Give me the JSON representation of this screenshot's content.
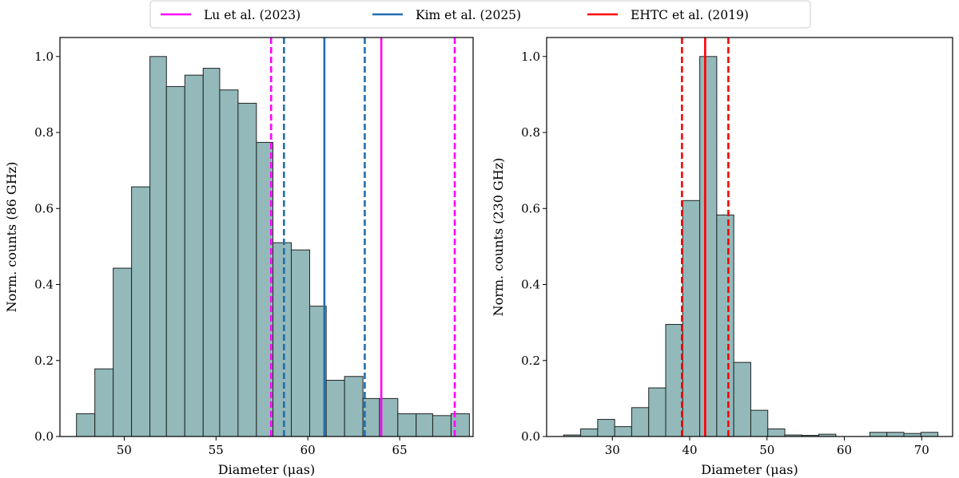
{
  "legend": {
    "items": [
      {
        "label": "Lu et al. (2023)",
        "color": "#ff00ff"
      },
      {
        "label": "Kim et al. (2025)",
        "color": "#1f6fb0"
      },
      {
        "label": "EHTC et al. (2019)",
        "color": "#ff0000"
      }
    ]
  },
  "chart_data": [
    {
      "type": "bar",
      "subtype": "histogram",
      "xlabel": "Diameter (μas)",
      "ylabel": "Norm. counts (86 GHz)",
      "xlim": [
        46.5,
        69.0
      ],
      "ylim": [
        0.0,
        1.05
      ],
      "xticks": [
        50,
        55,
        60,
        65
      ],
      "xtick_labels": [
        "50",
        "55",
        "60",
        "65"
      ],
      "yticks": [
        0.0,
        0.2,
        0.4,
        0.6,
        0.8,
        1.0
      ],
      "ytick_labels": [
        "0.0",
        "0.2",
        "0.4",
        "0.6",
        "0.8",
        "1.0"
      ],
      "bar_color": "#93b9ba",
      "bins": [
        {
          "x0": 47.4,
          "x1": 48.4,
          "value": 0.06
        },
        {
          "x0": 48.4,
          "x1": 49.4,
          "value": 0.178
        },
        {
          "x0": 49.4,
          "x1": 50.4,
          "value": 0.443
        },
        {
          "x0": 50.4,
          "x1": 51.4,
          "value": 0.657
        },
        {
          "x0": 51.4,
          "x1": 52.3,
          "value": 1.0
        },
        {
          "x0": 52.3,
          "x1": 53.3,
          "value": 0.921
        },
        {
          "x0": 53.3,
          "x1": 54.3,
          "value": 0.951
        },
        {
          "x0": 54.3,
          "x1": 55.2,
          "value": 0.969
        },
        {
          "x0": 55.2,
          "x1": 56.2,
          "value": 0.912
        },
        {
          "x0": 56.2,
          "x1": 57.2,
          "value": 0.877
        },
        {
          "x0": 57.2,
          "x1": 58.1,
          "value": 0.774
        },
        {
          "x0": 58.1,
          "x1": 59.1,
          "value": 0.51
        },
        {
          "x0": 59.1,
          "x1": 60.1,
          "value": 0.491
        },
        {
          "x0": 60.1,
          "x1": 61.0,
          "value": 0.343
        },
        {
          "x0": 61.0,
          "x1": 62.0,
          "value": 0.148
        },
        {
          "x0": 62.0,
          "x1": 63.0,
          "value": 0.158
        },
        {
          "x0": 63.0,
          "x1": 63.9,
          "value": 0.1
        },
        {
          "x0": 63.9,
          "x1": 64.9,
          "value": 0.1
        },
        {
          "x0": 64.9,
          "x1": 65.9,
          "value": 0.06
        },
        {
          "x0": 65.9,
          "x1": 66.8,
          "value": 0.06
        },
        {
          "x0": 66.8,
          "x1": 67.8,
          "value": 0.055
        },
        {
          "x0": 67.8,
          "x1": 68.8,
          "value": 0.06
        }
      ],
      "vlines": [
        {
          "series": "Lu et al. (2023)",
          "x": 58.0,
          "style": "dashed",
          "color": "#ff00ff"
        },
        {
          "series": "Lu et al. (2023)",
          "x": 64.0,
          "style": "solid",
          "color": "#ff00ff"
        },
        {
          "series": "Lu et al. (2023)",
          "x": 68.0,
          "style": "dashed",
          "color": "#ff00ff"
        },
        {
          "series": "Kim et al. (2025)",
          "x": 58.7,
          "style": "dashed",
          "color": "#1f6fb0"
        },
        {
          "series": "Kim et al. (2025)",
          "x": 60.9,
          "style": "solid",
          "color": "#1f6fb0"
        },
        {
          "series": "Kim et al. (2025)",
          "x": 63.1,
          "style": "dashed",
          "color": "#1f6fb0"
        }
      ]
    },
    {
      "type": "bar",
      "subtype": "histogram",
      "xlabel": "Diameter (μas)",
      "ylabel": "Norm. counts (230 GHz)",
      "xlim": [
        21.5,
        74.0
      ],
      "ylim": [
        0.0,
        1.05
      ],
      "xticks": [
        30,
        40,
        50,
        60,
        70
      ],
      "xtick_labels": [
        "30",
        "40",
        "50",
        "60",
        "70"
      ],
      "yticks": [
        0.0,
        0.2,
        0.4,
        0.6,
        0.8,
        1.0
      ],
      "ytick_labels": [
        "0.0",
        "0.2",
        "0.4",
        "0.6",
        "0.8",
        "1.0"
      ],
      "bar_color": "#93b9ba",
      "bins": [
        {
          "x0": 23.7,
          "x1": 25.9,
          "value": 0.004
        },
        {
          "x0": 25.9,
          "x1": 28.1,
          "value": 0.02
        },
        {
          "x0": 28.1,
          "x1": 30.3,
          "value": 0.045
        },
        {
          "x0": 30.3,
          "x1": 32.5,
          "value": 0.026
        },
        {
          "x0": 32.5,
          "x1": 34.7,
          "value": 0.076
        },
        {
          "x0": 34.7,
          "x1": 36.9,
          "value": 0.128
        },
        {
          "x0": 36.9,
          "x1": 39.1,
          "value": 0.295
        },
        {
          "x0": 39.1,
          "x1": 41.3,
          "value": 0.621
        },
        {
          "x0": 41.3,
          "x1": 43.5,
          "value": 1.0
        },
        {
          "x0": 43.5,
          "x1": 45.7,
          "value": 0.583
        },
        {
          "x0": 45.7,
          "x1": 47.9,
          "value": 0.195
        },
        {
          "x0": 47.9,
          "x1": 50.1,
          "value": 0.069
        },
        {
          "x0": 50.1,
          "x1": 52.3,
          "value": 0.02
        },
        {
          "x0": 52.3,
          "x1": 54.5,
          "value": 0.004
        },
        {
          "x0": 54.5,
          "x1": 56.7,
          "value": 0.003
        },
        {
          "x0": 56.7,
          "x1": 58.9,
          "value": 0.006
        },
        {
          "x0": 58.9,
          "x1": 61.1,
          "value": 0.0
        },
        {
          "x0": 61.1,
          "x1": 63.3,
          "value": 0.0
        },
        {
          "x0": 63.3,
          "x1": 65.5,
          "value": 0.011
        },
        {
          "x0": 65.5,
          "x1": 67.7,
          "value": 0.011
        },
        {
          "x0": 67.7,
          "x1": 69.9,
          "value": 0.008
        },
        {
          "x0": 69.9,
          "x1": 72.1,
          "value": 0.011
        }
      ],
      "vlines": [
        {
          "series": "EHTC et al. (2019)",
          "x": 39.0,
          "style": "dashed",
          "color": "#ff0000"
        },
        {
          "series": "EHTC et al. (2019)",
          "x": 42.0,
          "style": "solid",
          "color": "#ff0000"
        },
        {
          "series": "EHTC et al. (2019)",
          "x": 45.0,
          "style": "dashed",
          "color": "#ff0000"
        }
      ]
    }
  ]
}
